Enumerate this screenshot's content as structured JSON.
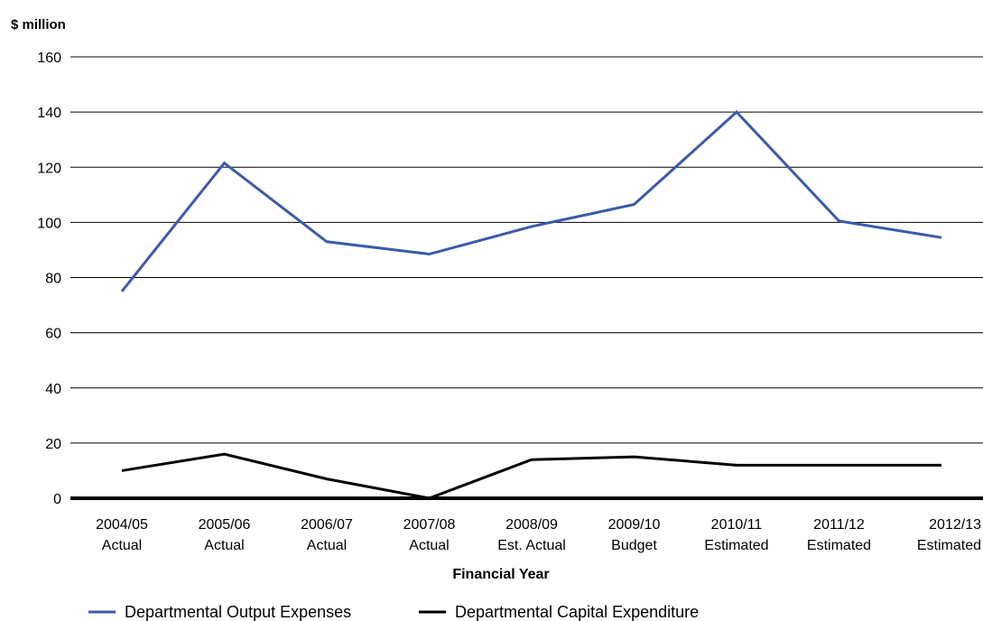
{
  "chart_data": {
    "type": "line",
    "title": "",
    "ylabel": "$ million",
    "xlabel": "Financial Year",
    "ylim": [
      0,
      160
    ],
    "yticks": [
      0,
      20,
      40,
      60,
      80,
      100,
      120,
      140,
      160
    ],
    "grid": true,
    "legend_position": "bottom",
    "categories": [
      [
        "2004/05",
        "Actual"
      ],
      [
        "2005/06",
        "Actual"
      ],
      [
        "2006/07",
        "Actual"
      ],
      [
        "2007/08",
        "Actual"
      ],
      [
        "2008/09",
        "Est. Actual"
      ],
      [
        "2009/10",
        "Budget"
      ],
      [
        "2010/11",
        "Estimated"
      ],
      [
        "2011/12",
        "Estimated"
      ],
      [
        "2012/13",
        "Estimated"
      ]
    ],
    "series": [
      {
        "name": "Departmental Output Expenses",
        "color": "#3a5ba8",
        "values": [
          75,
          121.5,
          93,
          88.5,
          98.5,
          106.5,
          140,
          100.5,
          94.5
        ]
      },
      {
        "name": "Departmental Capital Expenditure",
        "color": "#000000",
        "values": [
          10,
          16,
          7,
          0,
          14,
          15,
          12,
          12,
          12
        ]
      }
    ]
  }
}
